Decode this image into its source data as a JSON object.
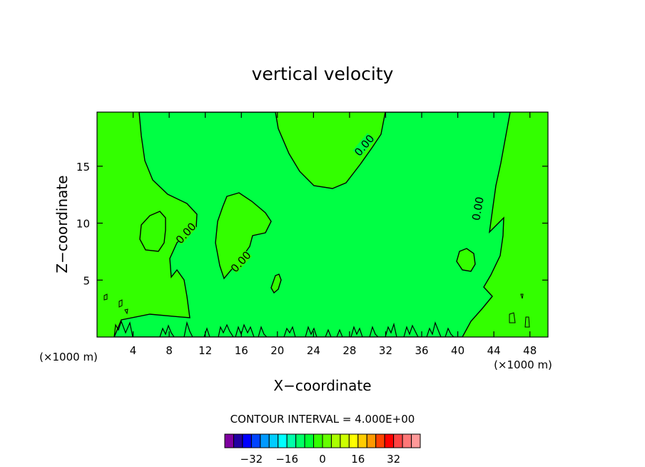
{
  "chart_data": {
    "type": "contour",
    "title": "vertical velocity",
    "xlabel": "X−coordinate",
    "ylabel": "Z−coordinate",
    "x_unit_left": "(×1000 m)",
    "x_unit_right": "(×1000 m)",
    "xlim": [
      0,
      50
    ],
    "ylim": [
      0,
      19.75
    ],
    "x_ticks": [
      4,
      8,
      12,
      16,
      20,
      24,
      28,
      32,
      36,
      40,
      44,
      48
    ],
    "y_ticks": [
      5,
      10,
      15
    ],
    "contour_label": "0.00",
    "contour_interval_text": "CONTOUR INTERVAL = 4.000E+00",
    "background_region_color": "#33ff00",
    "interior_region_color": "#00ff44",
    "colorbar": {
      "colors": [
        "#7f00a0",
        "#2200a0",
        "#0000ff",
        "#0044ff",
        "#0099ff",
        "#00ccff",
        "#00ffff",
        "#00ffaa",
        "#00ff66",
        "#00ff33",
        "#33ff00",
        "#66ff00",
        "#aaff00",
        "#ccff00",
        "#ffff00",
        "#ffcc00",
        "#ff9900",
        "#ff4400",
        "#ff0000",
        "#ff4444",
        "#ff7777",
        "#ff9999"
      ],
      "tick_labels": [
        "−32",
        "−16",
        "0",
        "16",
        "32"
      ],
      "tick_values": [
        -32,
        -16,
        0,
        16,
        32
      ],
      "min": -44,
      "max": 44
    }
  }
}
